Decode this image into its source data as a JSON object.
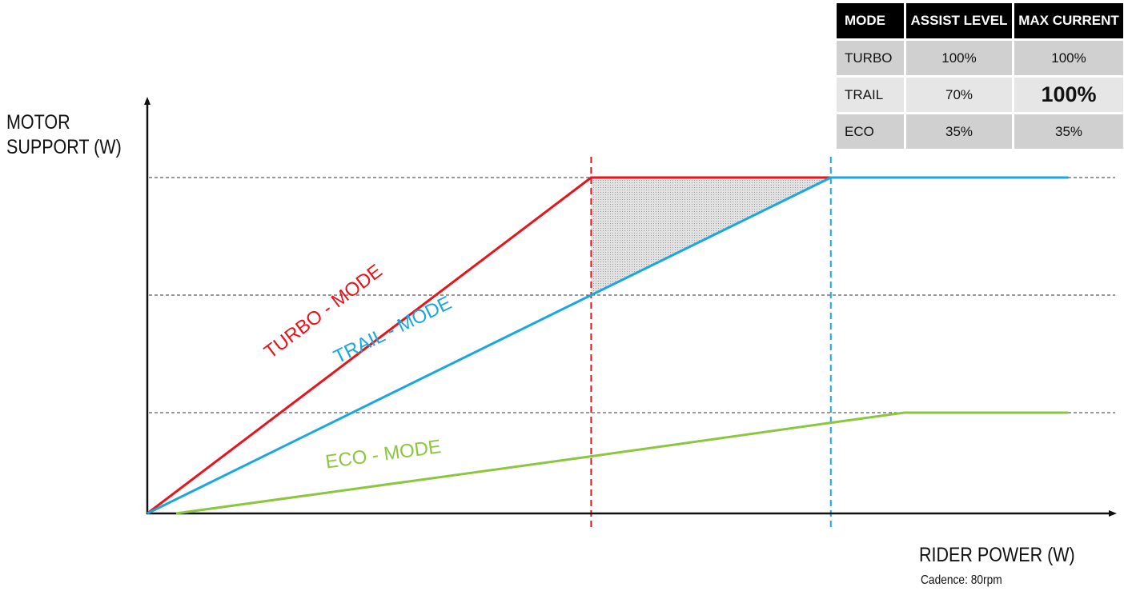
{
  "chart_data": {
    "type": "line",
    "ylabel_lines": [
      "MOTOR",
      "SUPPORT (W)"
    ],
    "xlabel": "RIDER POWER (W)",
    "subtitle": "Cadence: 80rpm",
    "xlim": [
      0,
      1
    ],
    "ylim": [
      0,
      1
    ],
    "series": [
      {
        "name": "TURBO - MODE",
        "color": "#e8141c",
        "x": [
          0,
          0.4,
          0.83
        ],
        "y": [
          0,
          1.0,
          1.0
        ]
      },
      {
        "name": "TRAIL - MODE",
        "color": "#1aa7e0",
        "x": [
          0,
          0.4,
          0.616,
          0.83
        ],
        "y": [
          0,
          0.65,
          1.0,
          1.0
        ]
      },
      {
        "name": "ECO - MODE",
        "color": "#8cc63e",
        "x": [
          0.026,
          0.4,
          0.616,
          0.682,
          0.83
        ],
        "y": [
          0,
          0.17,
          0.27,
          0.3,
          0.3
        ]
      }
    ],
    "reference_lines_y": [
      1.0,
      0.65,
      0.3
    ],
    "reference_lines_x": [
      {
        "x": 0.4,
        "color": "#e8141c"
      },
      {
        "x": 0.616,
        "color": "#1aa7e0"
      }
    ],
    "shaded_region": "between TURBO - MODE and TRAIL - MODE"
  },
  "table": {
    "headers": [
      "MODE",
      "ASSIST LEVEL",
      "MAX CURRENT"
    ],
    "rows": [
      {
        "mode": "TURBO",
        "assist": "100%",
        "current": "100%"
      },
      {
        "mode": "TRAIL",
        "assist": "70%",
        "current": "100%"
      },
      {
        "mode": "ECO",
        "assist": "35%",
        "current": "35%"
      }
    ]
  },
  "colors": {
    "turbo": "#e8141c",
    "trail": "#1aa7e0",
    "eco": "#8cc63e",
    "table_header": "#000000"
  }
}
